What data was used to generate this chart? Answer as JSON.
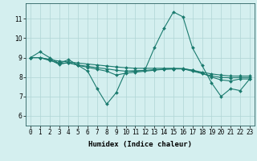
{
  "series": [
    {
      "x": [
        0,
        1,
        2,
        3,
        4,
        5,
        6,
        7,
        8,
        9,
        10,
        11,
        12,
        13,
        14,
        15,
        16,
        17,
        18,
        19,
        20,
        21,
        22,
        23
      ],
      "y": [
        9.0,
        9.3,
        9.0,
        8.7,
        8.9,
        8.6,
        8.3,
        7.4,
        6.6,
        7.2,
        8.3,
        8.3,
        8.35,
        9.5,
        10.5,
        11.35,
        11.1,
        9.5,
        8.6,
        7.7,
        7.0,
        7.4,
        7.3,
        7.9
      ]
    },
    {
      "x": [
        0,
        1,
        2,
        3,
        4,
        5,
        6,
        7,
        8,
        9,
        10,
        11,
        12,
        13,
        14,
        15,
        16,
        17,
        18,
        19,
        20,
        21,
        22,
        23
      ],
      "y": [
        9.0,
        9.0,
        8.9,
        8.65,
        8.75,
        8.6,
        8.5,
        8.4,
        8.3,
        8.1,
        8.2,
        8.25,
        8.3,
        8.35,
        8.4,
        8.42,
        8.42,
        8.35,
        8.2,
        8.0,
        7.85,
        7.8,
        7.9,
        7.9
      ]
    },
    {
      "x": [
        0,
        1,
        2,
        3,
        4,
        5,
        6,
        7,
        8,
        9,
        10,
        11,
        12,
        13,
        14,
        15,
        16,
        17,
        18,
        19,
        20,
        21,
        22,
        23
      ],
      "y": [
        9.0,
        9.0,
        8.85,
        8.72,
        8.72,
        8.62,
        8.55,
        8.48,
        8.42,
        8.35,
        8.3,
        8.32,
        8.34,
        8.38,
        8.4,
        8.42,
        8.42,
        8.3,
        8.18,
        8.06,
        7.98,
        7.96,
        7.97,
        7.97
      ]
    },
    {
      "x": [
        0,
        1,
        2,
        3,
        4,
        5,
        6,
        7,
        8,
        9,
        10,
        11,
        12,
        13,
        14,
        15,
        16,
        17,
        18,
        19,
        20,
        21,
        22,
        23
      ],
      "y": [
        9.0,
        9.0,
        8.9,
        8.82,
        8.78,
        8.72,
        8.67,
        8.62,
        8.57,
        8.52,
        8.48,
        8.45,
        8.45,
        8.45,
        8.45,
        8.45,
        8.44,
        8.35,
        8.25,
        8.16,
        8.1,
        8.05,
        8.05,
        8.05
      ]
    }
  ],
  "line_color": "#1a7a6e",
  "marker": "D",
  "markersize": 2.0,
  "linewidth": 0.8,
  "xlim": [
    -0.5,
    23.5
  ],
  "ylim": [
    5.5,
    11.8
  ],
  "yticks": [
    6,
    7,
    8,
    9,
    10,
    11
  ],
  "xticks": [
    0,
    1,
    2,
    3,
    4,
    5,
    6,
    7,
    8,
    9,
    10,
    11,
    12,
    13,
    14,
    15,
    16,
    17,
    18,
    19,
    20,
    21,
    22,
    23
  ],
  "xlabel": "Humidex (Indice chaleur)",
  "xlabel_fontsize": 6.5,
  "tick_fontsize": 5.5,
  "background_color": "#d4efef",
  "grid_color": "#b0d5d5",
  "spine_color": "#2a6060"
}
